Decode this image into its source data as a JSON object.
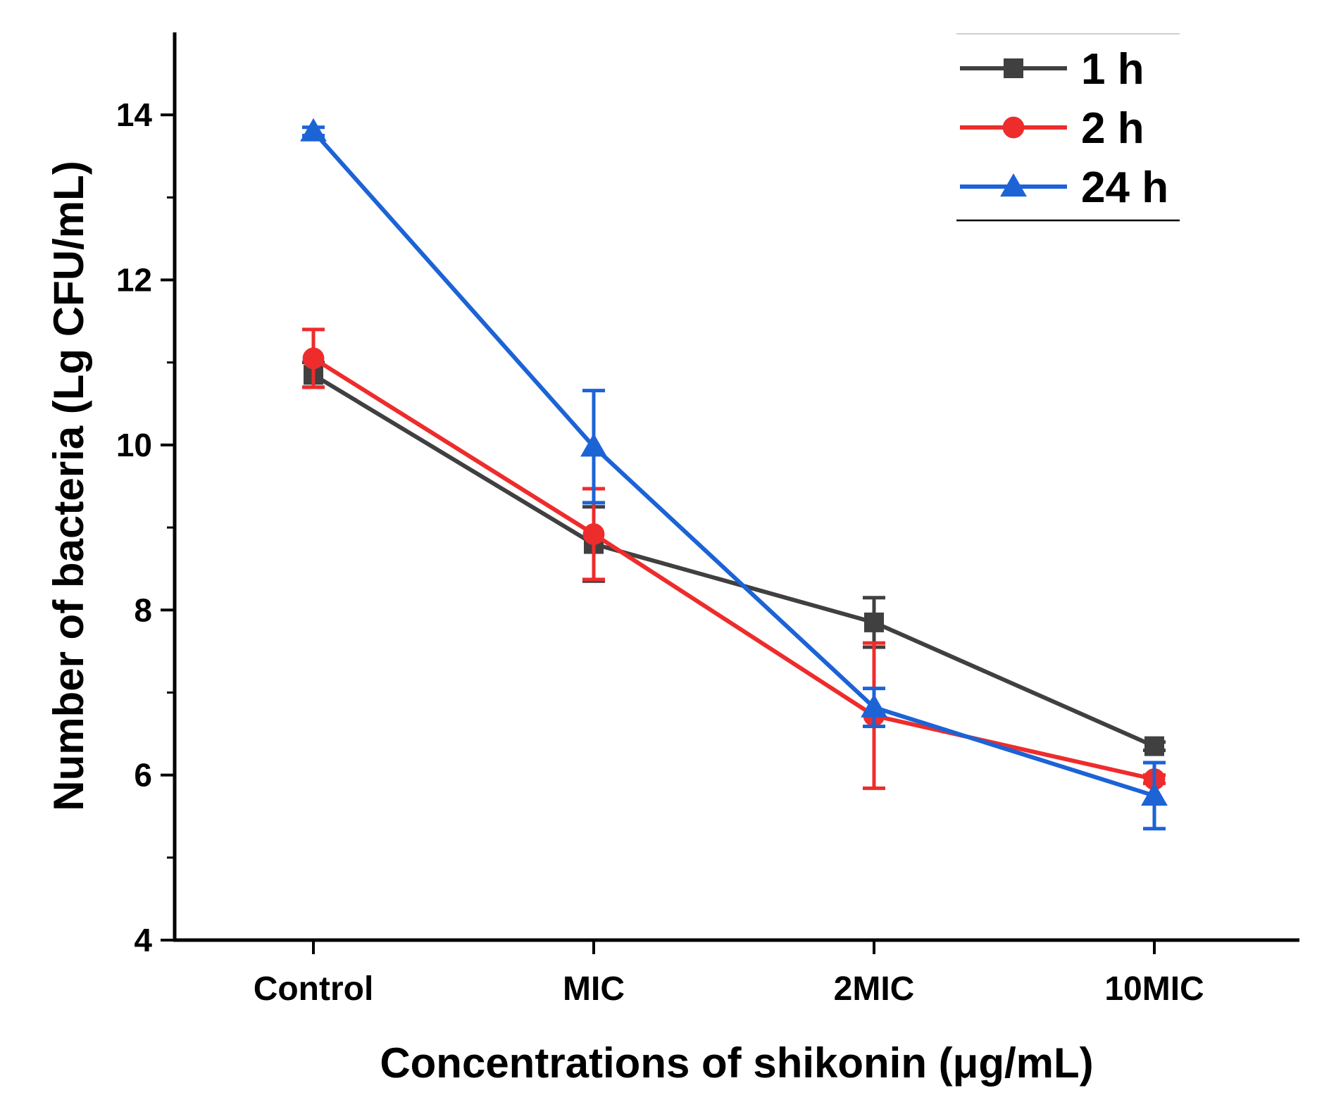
{
  "chart_data": {
    "type": "line",
    "title": "",
    "xlabel": "Concentrations of shikonin (μg/mL)",
    "ylabel": "Number of bacteria (Lg CFU/mL)",
    "categories": [
      "Control",
      "MIC",
      "2MIC",
      "10MIC"
    ],
    "ylim": [
      4,
      15
    ],
    "yticks": [
      4,
      6,
      8,
      10,
      12,
      14
    ],
    "ytick_labels": [
      "4",
      "6",
      "8",
      "10",
      "12",
      "14"
    ],
    "legend_position": "top-right",
    "grid": false,
    "series": [
      {
        "name": "1 h",
        "color": "#404040",
        "marker": "square",
        "values": [
          10.85,
          8.8,
          7.85,
          6.35
        ],
        "errors": [
          0.15,
          0.45,
          0.3,
          0.05
        ]
      },
      {
        "name": "2 h",
        "color": "#ee2c2c",
        "marker": "circle",
        "values": [
          11.05,
          8.92,
          6.72,
          5.95
        ],
        "errors": [
          0.35,
          0.55,
          0.88,
          0.05
        ]
      },
      {
        "name": "24 h",
        "color": "#1c63d6",
        "marker": "triangle",
        "values": [
          13.8,
          9.98,
          6.82,
          5.75
        ],
        "errors": [
          0.05,
          0.68,
          0.23,
          0.4
        ]
      }
    ]
  }
}
